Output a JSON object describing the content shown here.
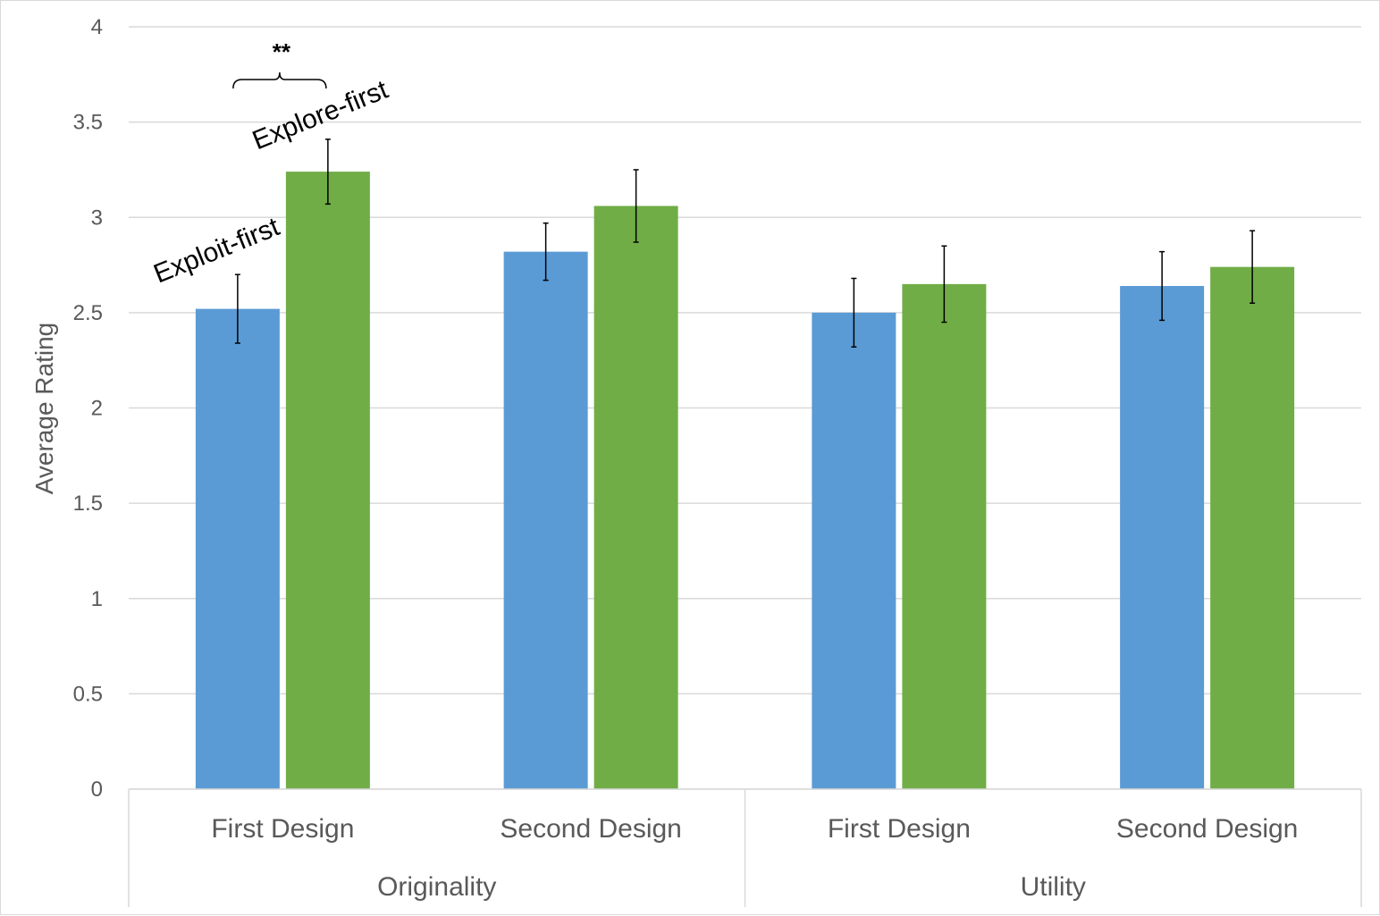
{
  "chart_data": {
    "type": "bar",
    "ylabel": "Average Rating",
    "xlabel": "",
    "ylim": [
      0,
      4
    ],
    "yticks": [
      "0",
      "0.5",
      "1",
      "1.5",
      "2",
      "2.5",
      "3",
      "3.5",
      "4"
    ],
    "grid": true,
    "groups": [
      {
        "label": "Originality",
        "categories": [
          "First Design",
          "Second Design"
        ]
      },
      {
        "label": "Utility",
        "categories": [
          "First Design",
          "Second Design"
        ]
      }
    ],
    "categories": [
      "First Design",
      "Second Design",
      "First Design",
      "Second Design"
    ],
    "series": [
      {
        "name": "Exploit-first",
        "color": "#5b9bd5",
        "values": [
          2.52,
          2.82,
          2.5,
          2.64
        ],
        "error": [
          0.18,
          0.15,
          0.18,
          0.18
        ]
      },
      {
        "name": "Explore-first",
        "color": "#70ad47",
        "values": [
          3.24,
          3.06,
          2.65,
          2.74
        ],
        "error": [
          0.17,
          0.19,
          0.2,
          0.19
        ]
      }
    ],
    "annotations": {
      "significance": "**"
    }
  }
}
